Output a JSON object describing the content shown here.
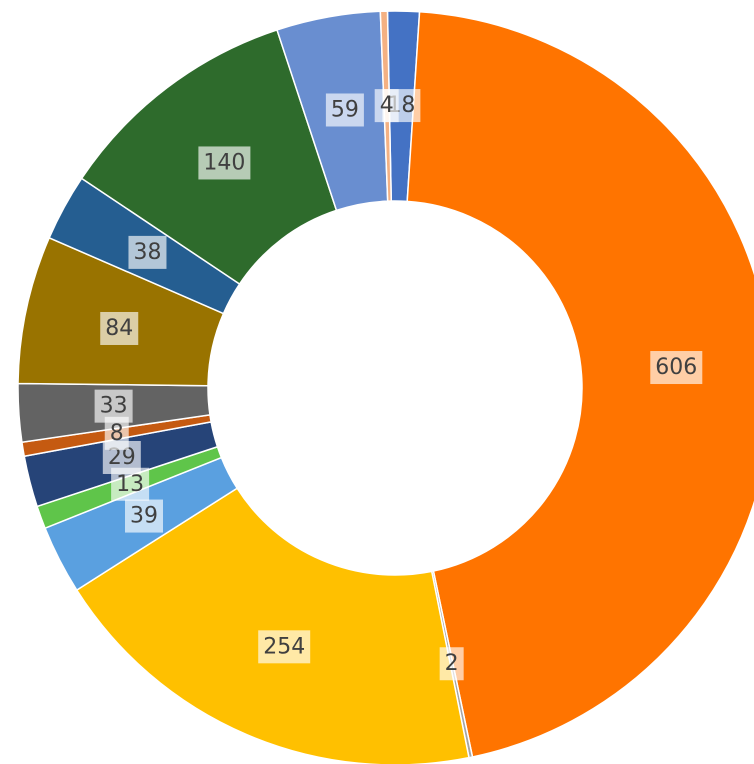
{
  "chart_data": {
    "type": "donut",
    "values": [
      18,
      606,
      2,
      254,
      39,
      13,
      29,
      8,
      33,
      84,
      38,
      140,
      59,
      4
    ],
    "colors": [
      "#4472c4",
      "#ff7400",
      "#a5a5a5",
      "#ffc000",
      "#5aa0e0",
      "#5fc54a",
      "#264478",
      "#c55a11",
      "#636363",
      "#997300",
      "#255e91",
      "#2e6b2c",
      "#698ed0",
      "#f4b183"
    ]
  }
}
